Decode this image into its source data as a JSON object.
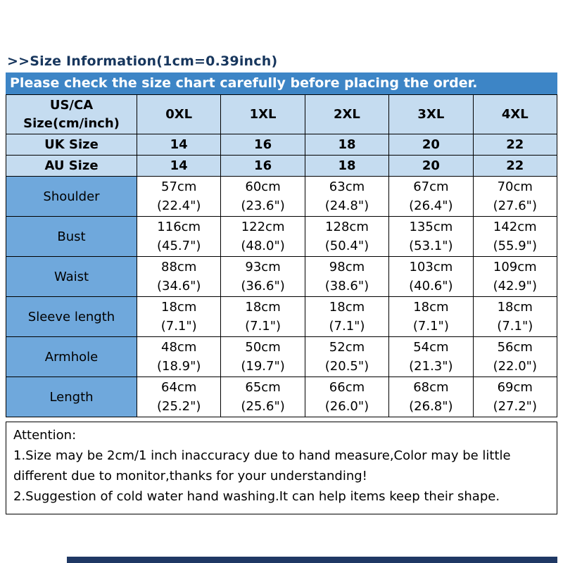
{
  "page": {
    "title": ">>Size Information(1cm=0.39inch)",
    "banner": "Please check the size chart carefully before placing the order."
  },
  "table": {
    "header": {
      "label_line1": "US/CA",
      "label_line2": "Size(cm/inch)",
      "sizes": [
        "0XL",
        "1XL",
        "2XL",
        "3XL",
        "4XL"
      ]
    },
    "uk": {
      "label": "UK Size",
      "values": [
        "14",
        "16",
        "18",
        "20",
        "22"
      ]
    },
    "au": {
      "label": "AU Size",
      "values": [
        "14",
        "16",
        "18",
        "20",
        "22"
      ]
    },
    "rows": [
      {
        "label": "Shoulder",
        "values": [
          [
            "57cm",
            "(22.4\")"
          ],
          [
            "60cm",
            "(23.6\")"
          ],
          [
            "63cm",
            "(24.8\")"
          ],
          [
            "67cm",
            "(26.4\")"
          ],
          [
            "70cm",
            "(27.6\")"
          ]
        ]
      },
      {
        "label": "Bust",
        "values": [
          [
            "116cm",
            "(45.7\")"
          ],
          [
            "122cm",
            "(48.0\")"
          ],
          [
            "128cm",
            "(50.4\")"
          ],
          [
            "135cm",
            "(53.1\")"
          ],
          [
            "142cm",
            "(55.9\")"
          ]
        ]
      },
      {
        "label": "Waist",
        "values": [
          [
            "88cm",
            "(34.6\")"
          ],
          [
            "93cm",
            "(36.6\")"
          ],
          [
            "98cm",
            "(38.6\")"
          ],
          [
            "103cm",
            "(40.6\")"
          ],
          [
            "109cm",
            "(42.9\")"
          ]
        ]
      },
      {
        "label": "Sleeve length",
        "values": [
          [
            "18cm",
            "(7.1\")"
          ],
          [
            "18cm",
            "(7.1\")"
          ],
          [
            "18cm",
            "(7.1\")"
          ],
          [
            "18cm",
            "(7.1\")"
          ],
          [
            "18cm",
            "(7.1\")"
          ]
        ]
      },
      {
        "label": "Armhole",
        "values": [
          [
            "48cm",
            "(18.9\")"
          ],
          [
            "50cm",
            "(19.7\")"
          ],
          [
            "52cm",
            "(20.5\")"
          ],
          [
            "54cm",
            "(21.3\")"
          ],
          [
            "56cm",
            "(22.0\")"
          ]
        ]
      },
      {
        "label": "Length",
        "values": [
          [
            "64cm",
            "(25.2\")"
          ],
          [
            "65cm",
            "(25.6\")"
          ],
          [
            "66cm",
            "(26.0\")"
          ],
          [
            "68cm",
            "(26.8\")"
          ],
          [
            "69cm",
            "(27.2\")"
          ]
        ]
      }
    ]
  },
  "attention": {
    "heading": "Attention:",
    "line1": "1.Size may be 2cm/1 inch inaccuracy due to hand measure,Color may be little different due to monitor,thanks for your understanding!",
    "line2": "2.Suggestion of cold water hand washing.It can help items keep their shape."
  },
  "colors": {
    "banner_bg": "#3d85c6",
    "header_row_bg": "#c5dcf0",
    "label_column_bg": "#6fa8dc",
    "title_text": "#17365d",
    "bottom_bar": "#1f3864"
  }
}
